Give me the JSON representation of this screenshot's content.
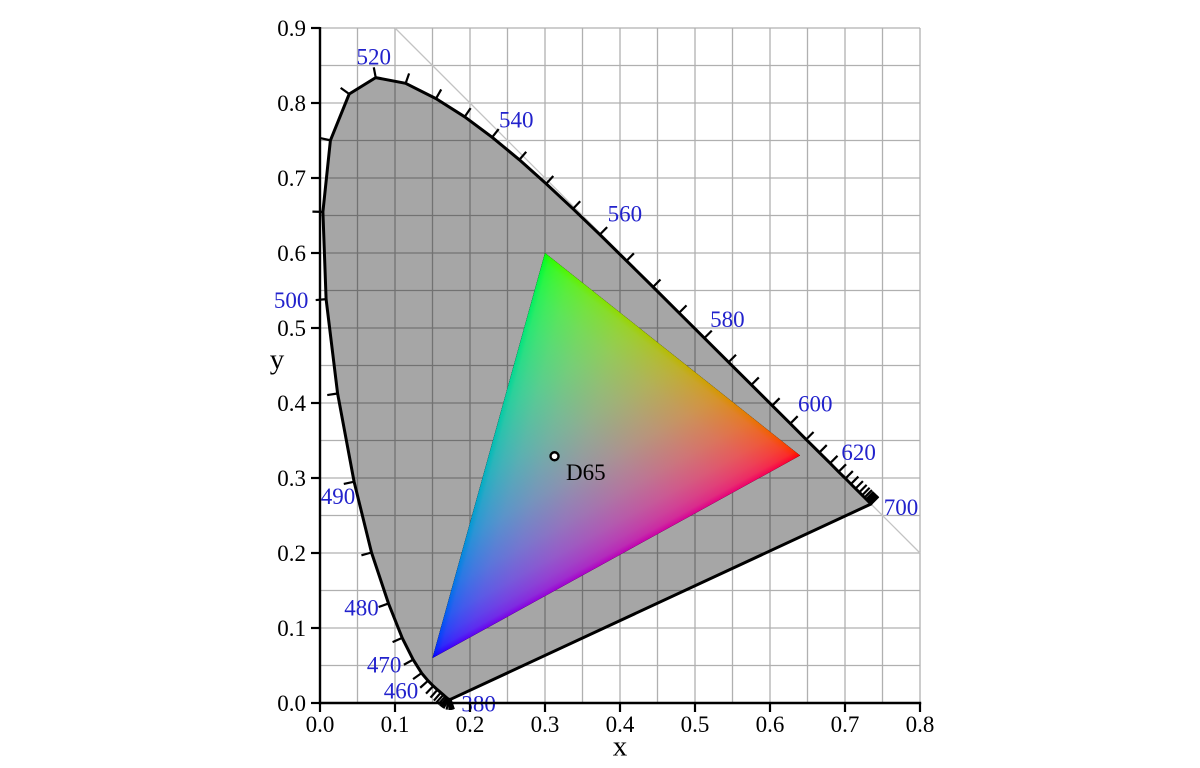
{
  "chart_data": {
    "type": "area",
    "xlabel": "x",
    "ylabel": "y",
    "xlim": [
      0.0,
      0.8
    ],
    "ylim": [
      0.0,
      0.9
    ],
    "x_tick_labels": [
      "0.0",
      "0.1",
      "0.2",
      "0.3",
      "0.4",
      "0.5",
      "0.6",
      "0.7",
      "0.8"
    ],
    "y_tick_labels": [
      "0.0",
      "0.1",
      "0.2",
      "0.3",
      "0.4",
      "0.5",
      "0.6",
      "0.7",
      "0.8",
      "0.9"
    ],
    "grid": true,
    "grid_step": 0.05,
    "diagonal_line": {
      "x1": 0.1,
      "y1": 0.9,
      "x2": 0.8,
      "y2": 0.2
    },
    "wavelength_tick_step_nm": 5,
    "wavelength_labels": [
      "380",
      "460",
      "470",
      "480",
      "490",
      "500",
      "520",
      "540",
      "560",
      "580",
      "600",
      "620",
      "700"
    ],
    "spectral_locus": [
      [
        380,
        0.1741,
        0.005
      ],
      [
        385,
        0.174,
        0.005
      ],
      [
        390,
        0.1738,
        0.0049
      ],
      [
        395,
        0.1736,
        0.0049
      ],
      [
        400,
        0.1733,
        0.0048
      ],
      [
        405,
        0.173,
        0.0048
      ],
      [
        410,
        0.1726,
        0.0048
      ],
      [
        415,
        0.1721,
        0.0048
      ],
      [
        420,
        0.1714,
        0.0051
      ],
      [
        425,
        0.1703,
        0.0058
      ],
      [
        430,
        0.1689,
        0.0069
      ],
      [
        435,
        0.1669,
        0.0086
      ],
      [
        440,
        0.1644,
        0.0109
      ],
      [
        445,
        0.1611,
        0.0138
      ],
      [
        450,
        0.1566,
        0.0177
      ],
      [
        455,
        0.151,
        0.0227
      ],
      [
        460,
        0.144,
        0.0297
      ],
      [
        465,
        0.1355,
        0.0399
      ],
      [
        470,
        0.1241,
        0.0578
      ],
      [
        475,
        0.1096,
        0.0868
      ],
      [
        480,
        0.0913,
        0.1327
      ],
      [
        485,
        0.0687,
        0.2007
      ],
      [
        490,
        0.0454,
        0.295
      ],
      [
        495,
        0.0235,
        0.4127
      ],
      [
        500,
        0.0082,
        0.5384
      ],
      [
        505,
        0.0039,
        0.6548
      ],
      [
        510,
        0.0139,
        0.7502
      ],
      [
        515,
        0.0389,
        0.812
      ],
      [
        520,
        0.0743,
        0.8338
      ],
      [
        525,
        0.1142,
        0.8262
      ],
      [
        530,
        0.1547,
        0.8059
      ],
      [
        535,
        0.1929,
        0.7816
      ],
      [
        540,
        0.2296,
        0.7543
      ],
      [
        545,
        0.2658,
        0.7243
      ],
      [
        550,
        0.3016,
        0.6923
      ],
      [
        555,
        0.3373,
        0.6589
      ],
      [
        560,
        0.3731,
        0.6245
      ],
      [
        565,
        0.4087,
        0.5896
      ],
      [
        570,
        0.4441,
        0.5547
      ],
      [
        575,
        0.4788,
        0.5202
      ],
      [
        580,
        0.5125,
        0.4866
      ],
      [
        585,
        0.5448,
        0.4544
      ],
      [
        590,
        0.5752,
        0.4242
      ],
      [
        595,
        0.6029,
        0.3965
      ],
      [
        600,
        0.627,
        0.3725
      ],
      [
        605,
        0.6482,
        0.3514
      ],
      [
        610,
        0.6658,
        0.334
      ],
      [
        615,
        0.6801,
        0.3197
      ],
      [
        620,
        0.6915,
        0.3083
      ],
      [
        625,
        0.7006,
        0.2993
      ],
      [
        630,
        0.7079,
        0.292
      ],
      [
        635,
        0.714,
        0.2859
      ],
      [
        640,
        0.719,
        0.2809
      ],
      [
        645,
        0.723,
        0.277
      ],
      [
        650,
        0.726,
        0.274
      ],
      [
        655,
        0.7283,
        0.2717
      ],
      [
        660,
        0.73,
        0.27
      ],
      [
        665,
        0.7311,
        0.2689
      ],
      [
        670,
        0.732,
        0.268
      ],
      [
        675,
        0.7327,
        0.2673
      ],
      [
        680,
        0.7334,
        0.2666
      ],
      [
        685,
        0.734,
        0.266
      ],
      [
        690,
        0.7344,
        0.2656
      ],
      [
        695,
        0.7346,
        0.2654
      ],
      [
        700,
        0.7347,
        0.2653
      ]
    ],
    "srgb_gamut": {
      "red": [
        0.64,
        0.33
      ],
      "green": [
        0.3,
        0.6
      ],
      "blue": [
        0.15,
        0.06
      ]
    },
    "white_point": {
      "label": "D65",
      "x": 0.3127,
      "y": 0.329
    },
    "colors": {
      "wavelength_label": "#2222cc",
      "grid": "#b0b0b0",
      "locus_fill": "rgba(0,0,0,0.35)",
      "outline": "#000000",
      "diagonal": "#c3c3c3",
      "axis": "#000000",
      "text": "#000000"
    }
  }
}
